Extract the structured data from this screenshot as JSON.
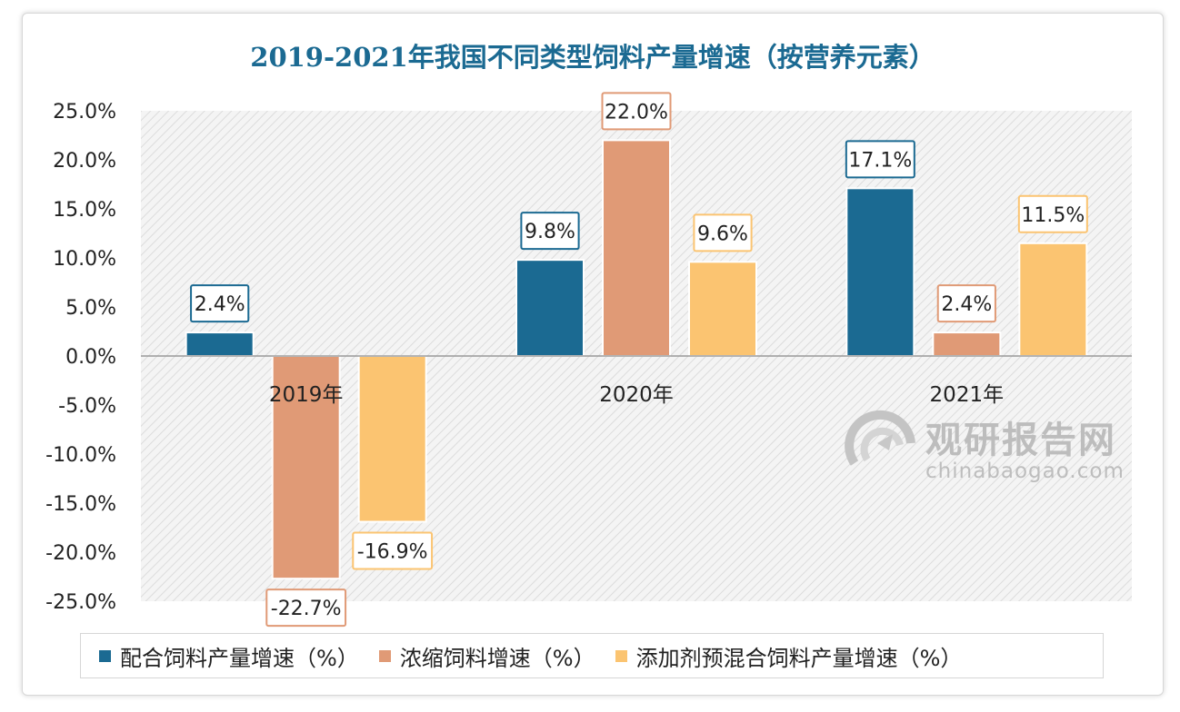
{
  "chart_data": {
    "type": "bar",
    "title": "2019-2021年我国不同类型饲料产量增速（按营养元素）",
    "categories": [
      "2019年",
      "2020年",
      "2021年"
    ],
    "series": [
      {
        "name": "配合饲料产量增速（%）",
        "color": "#1b6a92",
        "values": [
          2.4,
          9.8,
          17.1
        ]
      },
      {
        "name": "浓缩饲料增速（%）",
        "color": "#e09a76",
        "values": [
          -22.7,
          22.0,
          2.4
        ]
      },
      {
        "name": "添加剂预混合饲料产量增速（%）",
        "color": "#fbc471",
        "values": [
          -16.9,
          9.6,
          11.5
        ]
      }
    ],
    "data_labels": [
      [
        "2.4%",
        "9.8%",
        "17.1%"
      ],
      [
        "-22.7%",
        "22.0%",
        "2.4%"
      ],
      [
        "-16.9%",
        "9.6%",
        "11.5%"
      ]
    ],
    "ylim": [
      -25,
      25
    ],
    "y_ticks": [
      25,
      20,
      15,
      10,
      5,
      0,
      -5,
      -10,
      -15,
      -20,
      -25
    ],
    "y_tick_labels": [
      "25.0%",
      "20.0%",
      "15.0%",
      "10.0%",
      "5.0%",
      "0.0%",
      "-5.0%",
      "-10.0%",
      "-15.0%",
      "-20.0%",
      "-25.0%"
    ],
    "xlabel": "",
    "ylabel": "",
    "legend_position": "bottom"
  },
  "watermark": {
    "name": "观研报告网",
    "url": "chinabaogao.com"
  }
}
